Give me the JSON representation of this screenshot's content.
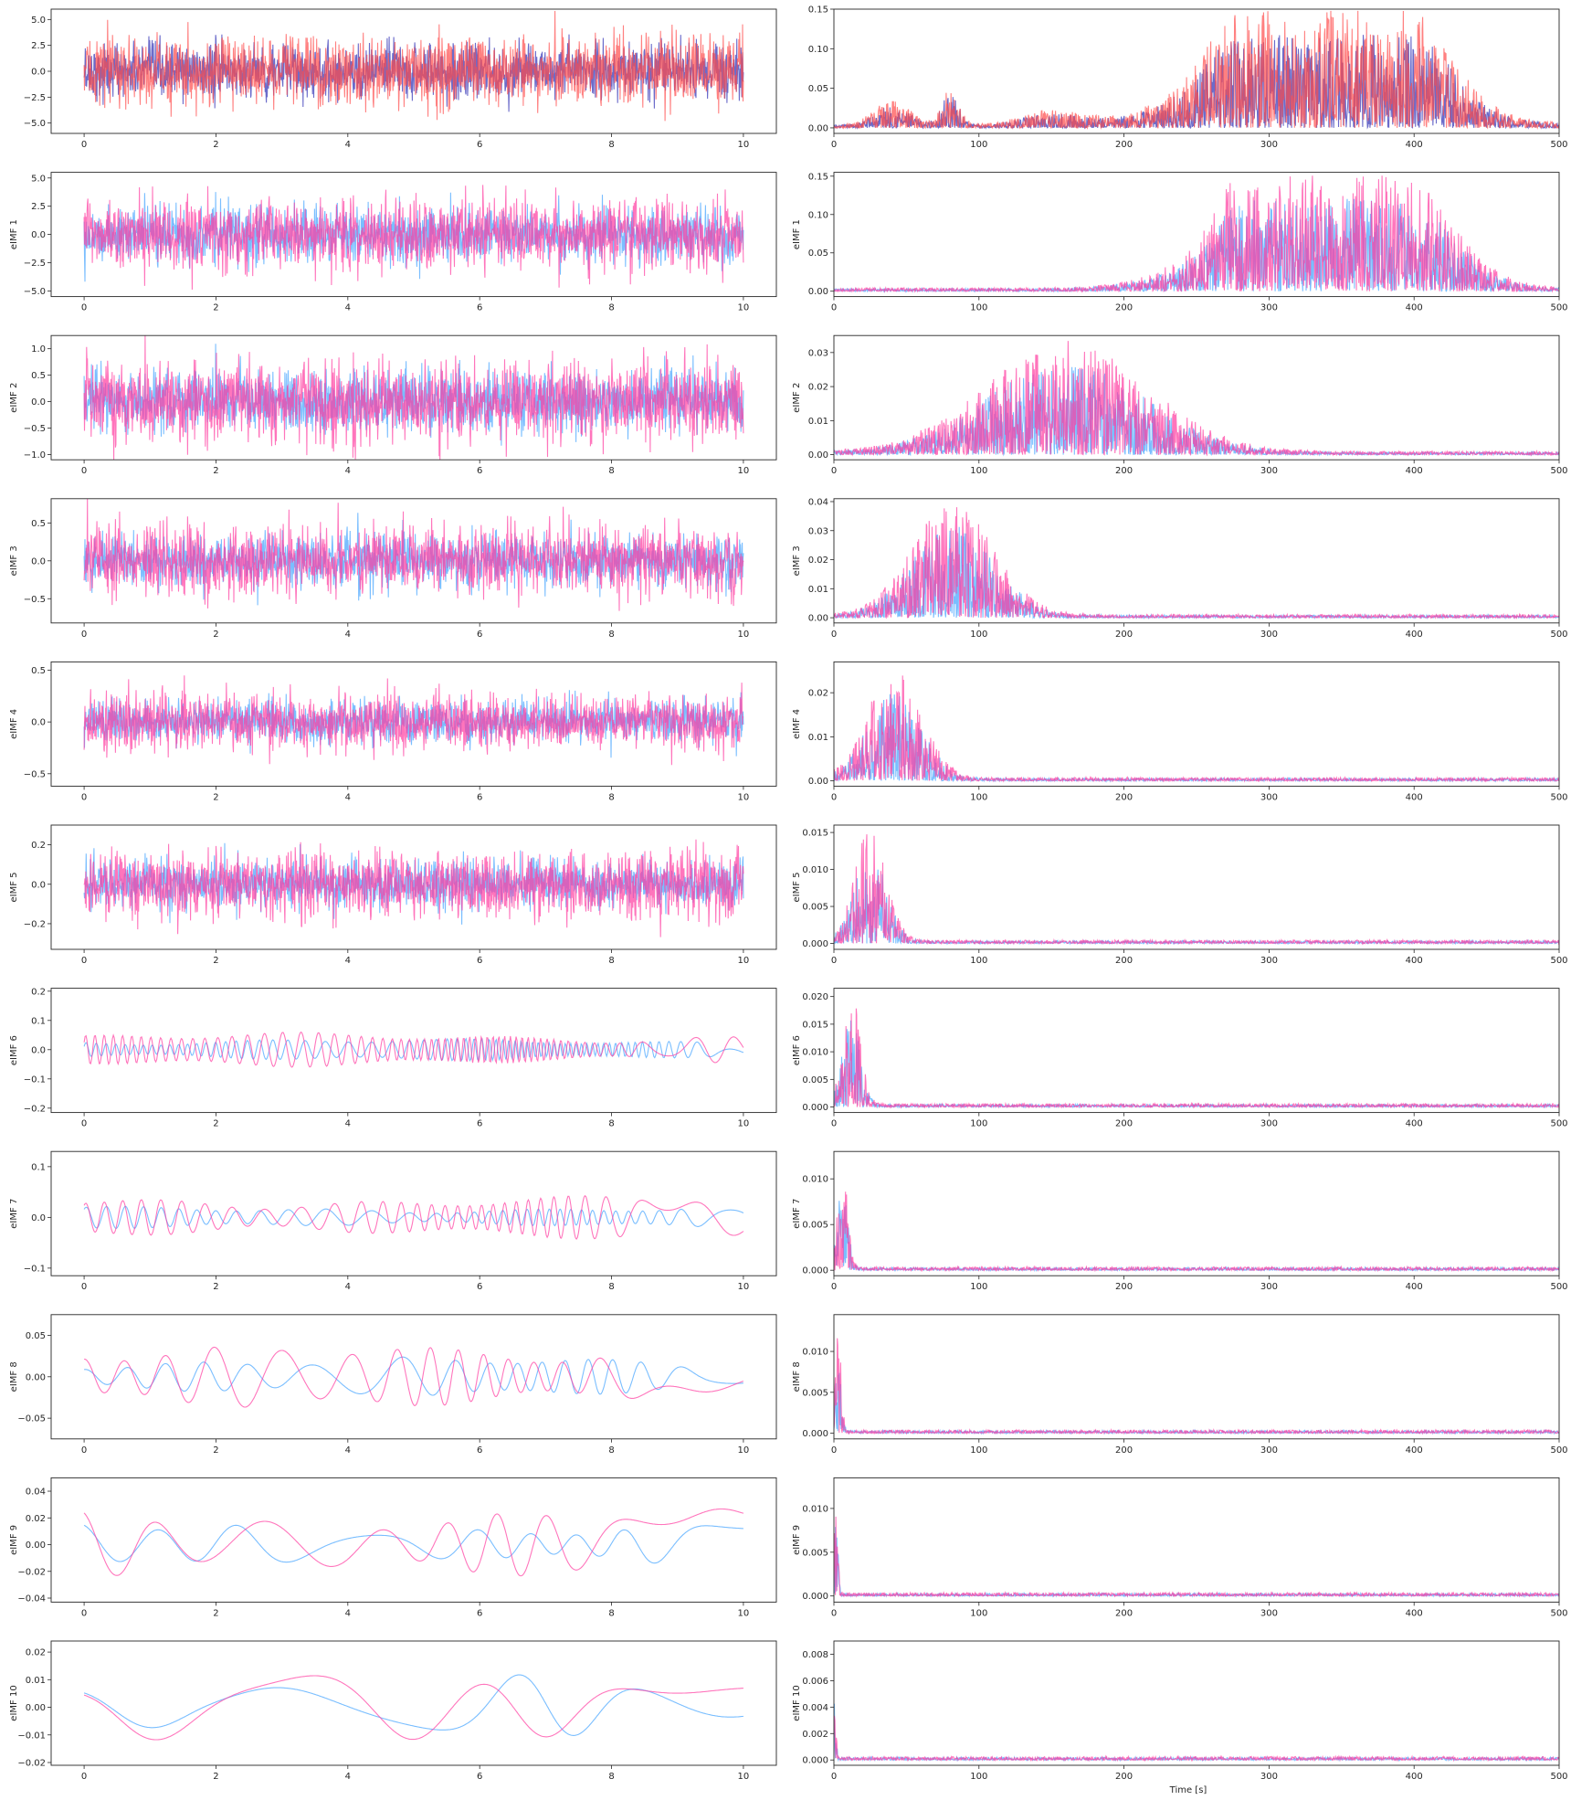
{
  "figure": {
    "xlabel_bottom": "Time [s]"
  },
  "colors": {
    "signal_a": "#3a3ab8",
    "signal_b": "#ff4a4a",
    "signal_overlap": "#c4203f",
    "imf_a": "#4ea8ff",
    "imf_b": "#ff3aa0"
  },
  "chart_data": [
    {
      "type": "line",
      "row": 0,
      "col": 0,
      "ylabel": "",
      "xlim": [
        -0.5,
        10.5
      ],
      "ylim": [
        -6,
        6
      ],
      "xticks": [
        0,
        2,
        4,
        6,
        8,
        10
      ],
      "xtick_labels": [
        "0",
        "2",
        "4",
        "6",
        "8",
        "10"
      ],
      "yticks": [
        -5,
        -2.5,
        0,
        2.5,
        5
      ],
      "ytick_labels": [
        "−5.0",
        "−2.5",
        "0.0",
        "2.5",
        "5.0"
      ],
      "series": [
        {
          "color_key": "signal_a"
        },
        {
          "color_key": "signal_b"
        }
      ],
      "kind": "time",
      "amplitude": [
        1.3,
        1.6
      ],
      "x_range": [
        0,
        10
      ]
    },
    {
      "type": "line",
      "row": 0,
      "col": 1,
      "ylabel": "",
      "xlim": [
        0,
        500
      ],
      "ylim": [
        -0.007,
        0.15
      ],
      "xticks": [
        0,
        100,
        200,
        300,
        400,
        500
      ],
      "xtick_labels": [
        "0",
        "100",
        "200",
        "300",
        "400",
        "500"
      ],
      "yticks": [
        0,
        0.05,
        0.1,
        0.15
      ],
      "ytick_labels": [
        "0.00",
        "0.05",
        "0.10",
        "0.15"
      ],
      "series": [
        {
          "color_key": "signal_a"
        },
        {
          "color_key": "signal_b"
        }
      ],
      "kind": "spectrum",
      "peak": 0.145
    },
    {
      "type": "line",
      "row": 1,
      "col": 0,
      "ylabel": "eIMF 1",
      "xlim": [
        -0.5,
        10.5
      ],
      "ylim": [
        -5.5,
        5.5
      ],
      "xticks": [
        0,
        2,
        4,
        6,
        8,
        10
      ],
      "xtick_labels": [
        "0",
        "2",
        "4",
        "6",
        "8",
        "10"
      ],
      "yticks": [
        -5,
        -2.5,
        0,
        2.5,
        5
      ],
      "ytick_labels": [
        "−5.0",
        "−2.5",
        "0.0",
        "2.5",
        "5.0"
      ],
      "series": [
        {
          "color_key": "imf_a"
        },
        {
          "color_key": "imf_b"
        }
      ],
      "kind": "time",
      "amplitude": [
        1.2,
        1.5
      ],
      "x_range": [
        0,
        10
      ]
    },
    {
      "type": "line",
      "row": 1,
      "col": 1,
      "ylabel": "eIMF 1",
      "xlim": [
        0,
        500
      ],
      "ylim": [
        -0.007,
        0.155
      ],
      "xticks": [
        0,
        100,
        200,
        300,
        400,
        500
      ],
      "xtick_labels": [
        "0",
        "100",
        "200",
        "300",
        "400",
        "500"
      ],
      "yticks": [
        0,
        0.05,
        0.1,
        0.15
      ],
      "ytick_labels": [
        "0.00",
        "0.05",
        "0.10",
        "0.15"
      ],
      "series": [
        {
          "color_key": "imf_a"
        },
        {
          "color_key": "imf_b"
        }
      ],
      "kind": "spectrum",
      "peak": 0.148
    },
    {
      "type": "line",
      "row": 2,
      "col": 0,
      "ylabel": "eIMF 2",
      "xlim": [
        -0.5,
        10.5
      ],
      "ylim": [
        -1.1,
        1.25
      ],
      "xticks": [
        0,
        2,
        4,
        6,
        8,
        10
      ],
      "xtick_labels": [
        "0",
        "2",
        "4",
        "6",
        "8",
        "10"
      ],
      "yticks": [
        -1,
        -0.5,
        0,
        0.5,
        1
      ],
      "ytick_labels": [
        "−1.0",
        "−0.5",
        "0.0",
        "0.5",
        "1.0"
      ],
      "series": [
        {
          "color_key": "imf_a"
        },
        {
          "color_key": "imf_b"
        }
      ],
      "kind": "time",
      "amplitude": [
        0.28,
        0.36
      ],
      "x_range": [
        0,
        10
      ]
    },
    {
      "type": "line",
      "row": 2,
      "col": 1,
      "ylabel": "eIMF 2",
      "xlim": [
        0,
        500
      ],
      "ylim": [
        -0.0015,
        0.035
      ],
      "xticks": [
        0,
        100,
        200,
        300,
        400,
        500
      ],
      "xtick_labels": [
        "0",
        "100",
        "200",
        "300",
        "400",
        "500"
      ],
      "yticks": [
        0,
        0.01,
        0.02,
        0.03
      ],
      "ytick_labels": [
        "0.00",
        "0.01",
        "0.02",
        "0.03"
      ],
      "series": [
        {
          "color_key": "imf_a"
        },
        {
          "color_key": "imf_b"
        }
      ],
      "kind": "spectrum",
      "peak": 0.033
    },
    {
      "type": "line",
      "row": 3,
      "col": 0,
      "ylabel": "eIMF 3",
      "xlim": [
        -0.5,
        10.5
      ],
      "ylim": [
        -0.82,
        0.82
      ],
      "xticks": [
        0,
        2,
        4,
        6,
        8,
        10
      ],
      "xtick_labels": [
        "0",
        "2",
        "4",
        "6",
        "8",
        "10"
      ],
      "yticks": [
        -0.5,
        0,
        0.5
      ],
      "ytick_labels": [
        "−0.5",
        "0.0",
        "0.5"
      ],
      "series": [
        {
          "color_key": "imf_a"
        },
        {
          "color_key": "imf_b"
        }
      ],
      "kind": "time",
      "amplitude": [
        0.17,
        0.22
      ],
      "x_range": [
        0,
        10
      ]
    },
    {
      "type": "line",
      "row": 3,
      "col": 1,
      "ylabel": "eIMF 3",
      "xlim": [
        0,
        500
      ],
      "ylim": [
        -0.0018,
        0.041
      ],
      "xticks": [
        0,
        100,
        200,
        300,
        400,
        500
      ],
      "xtick_labels": [
        "0",
        "100",
        "200",
        "300",
        "400",
        "500"
      ],
      "yticks": [
        0,
        0.01,
        0.02,
        0.03,
        0.04
      ],
      "ytick_labels": [
        "0.00",
        "0.01",
        "0.02",
        "0.03",
        "0.04"
      ],
      "series": [
        {
          "color_key": "imf_a"
        },
        {
          "color_key": "imf_b"
        }
      ],
      "kind": "spectrum",
      "peak": 0.039
    },
    {
      "type": "line",
      "row": 4,
      "col": 0,
      "ylabel": "eIMF 4",
      "xlim": [
        -0.5,
        10.5
      ],
      "ylim": [
        -0.62,
        0.58
      ],
      "xticks": [
        0,
        2,
        4,
        6,
        8,
        10
      ],
      "xtick_labels": [
        "0",
        "2",
        "4",
        "6",
        "8",
        "10"
      ],
      "yticks": [
        -0.5,
        0,
        0.5
      ],
      "ytick_labels": [
        "−0.5",
        "0.0",
        "0.5"
      ],
      "series": [
        {
          "color_key": "imf_a"
        },
        {
          "color_key": "imf_b"
        }
      ],
      "kind": "time",
      "amplitude": [
        0.1,
        0.13
      ],
      "x_range": [
        0,
        10
      ]
    },
    {
      "type": "line",
      "row": 4,
      "col": 1,
      "ylabel": "eIMF 4",
      "xlim": [
        0,
        500
      ],
      "ylim": [
        -0.0012,
        0.027
      ],
      "xticks": [
        0,
        100,
        200,
        300,
        400,
        500
      ],
      "xtick_labels": [
        "0",
        "100",
        "200",
        "300",
        "400",
        "500"
      ],
      "yticks": [
        0,
        0.01,
        0.02
      ],
      "ytick_labels": [
        "0.00",
        "0.01",
        "0.02"
      ],
      "series": [
        {
          "color_key": "imf_a"
        },
        {
          "color_key": "imf_b"
        }
      ],
      "kind": "spectrum",
      "peak": 0.026
    },
    {
      "type": "line",
      "row": 5,
      "col": 0,
      "ylabel": "eIMF 5",
      "xlim": [
        -0.5,
        10.5
      ],
      "ylim": [
        -0.33,
        0.3
      ],
      "xticks": [
        0,
        2,
        4,
        6,
        8,
        10
      ],
      "xtick_labels": [
        "0",
        "2",
        "4",
        "6",
        "8",
        "10"
      ],
      "yticks": [
        -0.2,
        0,
        0.2
      ],
      "ytick_labels": [
        "−0.2",
        "0.0",
        "0.2"
      ],
      "series": [
        {
          "color_key": "imf_a"
        },
        {
          "color_key": "imf_b"
        }
      ],
      "kind": "time",
      "amplitude": [
        0.06,
        0.08
      ],
      "x_range": [
        0,
        10
      ]
    },
    {
      "type": "line",
      "row": 5,
      "col": 1,
      "ylabel": "eIMF 5",
      "xlim": [
        0,
        500
      ],
      "ylim": [
        -0.0008,
        0.016
      ],
      "xticks": [
        0,
        100,
        200,
        300,
        400,
        500
      ],
      "xtick_labels": [
        "0",
        "100",
        "200",
        "300",
        "400",
        "500"
      ],
      "yticks": [
        0,
        0.005,
        0.01,
        0.015
      ],
      "ytick_labels": [
        "0.000",
        "0.005",
        "0.010",
        "0.015"
      ],
      "series": [
        {
          "color_key": "imf_a"
        },
        {
          "color_key": "imf_b"
        }
      ],
      "kind": "spectrum",
      "peak": 0.0153
    },
    {
      "type": "line",
      "row": 6,
      "col": 0,
      "ylabel": "eIMF 6",
      "xlim": [
        -0.5,
        10.5
      ],
      "ylim": [
        -0.215,
        0.21
      ],
      "xticks": [
        0,
        2,
        4,
        6,
        8,
        10
      ],
      "xtick_labels": [
        "0",
        "2",
        "4",
        "6",
        "8",
        "10"
      ],
      "yticks": [
        -0.2,
        -0.1,
        0,
        0.1,
        0.2
      ],
      "ytick_labels": [
        "−0.2",
        "−0.1",
        "0.0",
        "0.1",
        "0.2"
      ],
      "series": [
        {
          "color_key": "imf_a"
        },
        {
          "color_key": "imf_b"
        }
      ],
      "kind": "time",
      "amplitude": [
        0.035,
        0.055
      ],
      "x_range": [
        0,
        10
      ]
    },
    {
      "type": "line",
      "row": 6,
      "col": 1,
      "ylabel": "eIMF 6",
      "xlim": [
        0,
        500
      ],
      "ylim": [
        -0.001,
        0.0215
      ],
      "xticks": [
        0,
        100,
        200,
        300,
        400,
        500
      ],
      "xtick_labels": [
        "0",
        "100",
        "200",
        "300",
        "400",
        "500"
      ],
      "yticks": [
        0,
        0.005,
        0.01,
        0.015,
        0.02
      ],
      "ytick_labels": [
        "0.000",
        "0.005",
        "0.010",
        "0.015",
        "0.020"
      ],
      "series": [
        {
          "color_key": "imf_a"
        },
        {
          "color_key": "imf_b"
        }
      ],
      "kind": "spectrum",
      "peak": 0.0205
    },
    {
      "type": "line",
      "row": 7,
      "col": 0,
      "ylabel": "eIMF 7",
      "xlim": [
        -0.5,
        10.5
      ],
      "ylim": [
        -0.115,
        0.13
      ],
      "xticks": [
        0,
        2,
        4,
        6,
        8,
        10
      ],
      "xtick_labels": [
        "0",
        "2",
        "4",
        "6",
        "8",
        "10"
      ],
      "yticks": [
        -0.1,
        0,
        0.1
      ],
      "ytick_labels": [
        "−0.1",
        "0.0",
        "0.1"
      ],
      "series": [
        {
          "color_key": "imf_a"
        },
        {
          "color_key": "imf_b"
        }
      ],
      "kind": "time",
      "amplitude": [
        0.02,
        0.04
      ],
      "x_range": [
        0,
        10
      ]
    },
    {
      "type": "line",
      "row": 7,
      "col": 1,
      "ylabel": "eIMF 7",
      "xlim": [
        0,
        500
      ],
      "ylim": [
        -0.0006,
        0.013
      ],
      "xticks": [
        0,
        100,
        200,
        300,
        400,
        500
      ],
      "xtick_labels": [
        "0",
        "100",
        "200",
        "300",
        "400",
        "500"
      ],
      "yticks": [
        0,
        0.005,
        0.01
      ],
      "ytick_labels": [
        "0.000",
        "0.005",
        "0.010"
      ],
      "series": [
        {
          "color_key": "imf_a"
        },
        {
          "color_key": "imf_b"
        }
      ],
      "kind": "spectrum",
      "peak": 0.0125
    },
    {
      "type": "line",
      "row": 8,
      "col": 0,
      "ylabel": "eIMF 8",
      "xlim": [
        -0.5,
        10.5
      ],
      "ylim": [
        -0.075,
        0.075
      ],
      "xticks": [
        0,
        2,
        4,
        6,
        8,
        10
      ],
      "xtick_labels": [
        "0",
        "2",
        "4",
        "6",
        "8",
        "10"
      ],
      "yticks": [
        -0.05,
        0,
        0.05
      ],
      "ytick_labels": [
        "−0.05",
        "0.00",
        "0.05"
      ],
      "series": [
        {
          "color_key": "imf_a"
        },
        {
          "color_key": "imf_b"
        }
      ],
      "kind": "time",
      "amplitude": [
        0.022,
        0.035
      ],
      "x_range": [
        0,
        10
      ]
    },
    {
      "type": "line",
      "row": 8,
      "col": 1,
      "ylabel": "eIMF 8",
      "xlim": [
        0,
        500
      ],
      "ylim": [
        -0.0007,
        0.0145
      ],
      "xticks": [
        0,
        100,
        200,
        300,
        400,
        500
      ],
      "xtick_labels": [
        "0",
        "100",
        "200",
        "300",
        "400",
        "500"
      ],
      "yticks": [
        0,
        0.005,
        0.01
      ],
      "ytick_labels": [
        "0.000",
        "0.005",
        "0.010"
      ],
      "series": [
        {
          "color_key": "imf_a"
        },
        {
          "color_key": "imf_b"
        }
      ],
      "kind": "spectrum",
      "peak": 0.0135
    },
    {
      "type": "line",
      "row": 9,
      "col": 0,
      "ylabel": "eIMF 9",
      "xlim": [
        -0.5,
        10.5
      ],
      "ylim": [
        -0.043,
        0.05
      ],
      "xticks": [
        0,
        2,
        4,
        6,
        8,
        10
      ],
      "xtick_labels": [
        "0",
        "2",
        "4",
        "6",
        "8",
        "10"
      ],
      "yticks": [
        -0.04,
        -0.02,
        0,
        0.02,
        0.04
      ],
      "ytick_labels": [
        "−0.04",
        "−0.02",
        "0.00",
        "0.02",
        "0.04"
      ],
      "series": [
        {
          "color_key": "imf_a"
        },
        {
          "color_key": "imf_b"
        }
      ],
      "kind": "time",
      "amplitude": [
        0.015,
        0.025
      ],
      "x_range": [
        0,
        10
      ]
    },
    {
      "type": "line",
      "row": 9,
      "col": 1,
      "ylabel": "eIMF 9",
      "xlim": [
        0,
        500
      ],
      "ylim": [
        -0.0007,
        0.0135
      ],
      "xticks": [
        0,
        100,
        200,
        300,
        400,
        500
      ],
      "xtick_labels": [
        "0",
        "100",
        "200",
        "300",
        "400",
        "500"
      ],
      "yticks": [
        0,
        0.005,
        0.01
      ],
      "ytick_labels": [
        "0.000",
        "0.005",
        "0.010"
      ],
      "series": [
        {
          "color_key": "imf_a"
        },
        {
          "color_key": "imf_b"
        }
      ],
      "kind": "spectrum",
      "peak": 0.0128
    },
    {
      "type": "line",
      "row": 10,
      "col": 0,
      "ylabel": "eIMF 10",
      "xlim": [
        -0.5,
        10.5
      ],
      "ylim": [
        -0.021,
        0.024
      ],
      "xticks": [
        0,
        2,
        4,
        6,
        8,
        10
      ],
      "xtick_labels": [
        "0",
        "2",
        "4",
        "6",
        "8",
        "10"
      ],
      "yticks": [
        -0.02,
        -0.01,
        0,
        0.01,
        0.02
      ],
      "ytick_labels": [
        "−0.02",
        "−0.01",
        "0.00",
        "0.01",
        "0.02"
      ],
      "series": [
        {
          "color_key": "imf_a"
        },
        {
          "color_key": "imf_b"
        }
      ],
      "kind": "time",
      "amplitude": [
        0.011,
        0.013
      ],
      "x_range": [
        0,
        10
      ]
    },
    {
      "type": "line",
      "row": 10,
      "col": 1,
      "ylabel": "eIMF 10",
      "xlim": [
        0,
        500
      ],
      "ylim": [
        -0.0004,
        0.009
      ],
      "xticks": [
        0,
        100,
        200,
        300,
        400,
        500
      ],
      "xtick_labels": [
        "0",
        "100",
        "200",
        "300",
        "400",
        "500"
      ],
      "yticks": [
        0,
        0.002,
        0.004,
        0.006,
        0.008
      ],
      "ytick_labels": [
        "0.000",
        "0.002",
        "0.004",
        "0.006",
        "0.008"
      ],
      "series": [
        {
          "color_key": "imf_a"
        },
        {
          "color_key": "imf_b"
        }
      ],
      "kind": "spectrum",
      "peak": 0.0088
    }
  ]
}
